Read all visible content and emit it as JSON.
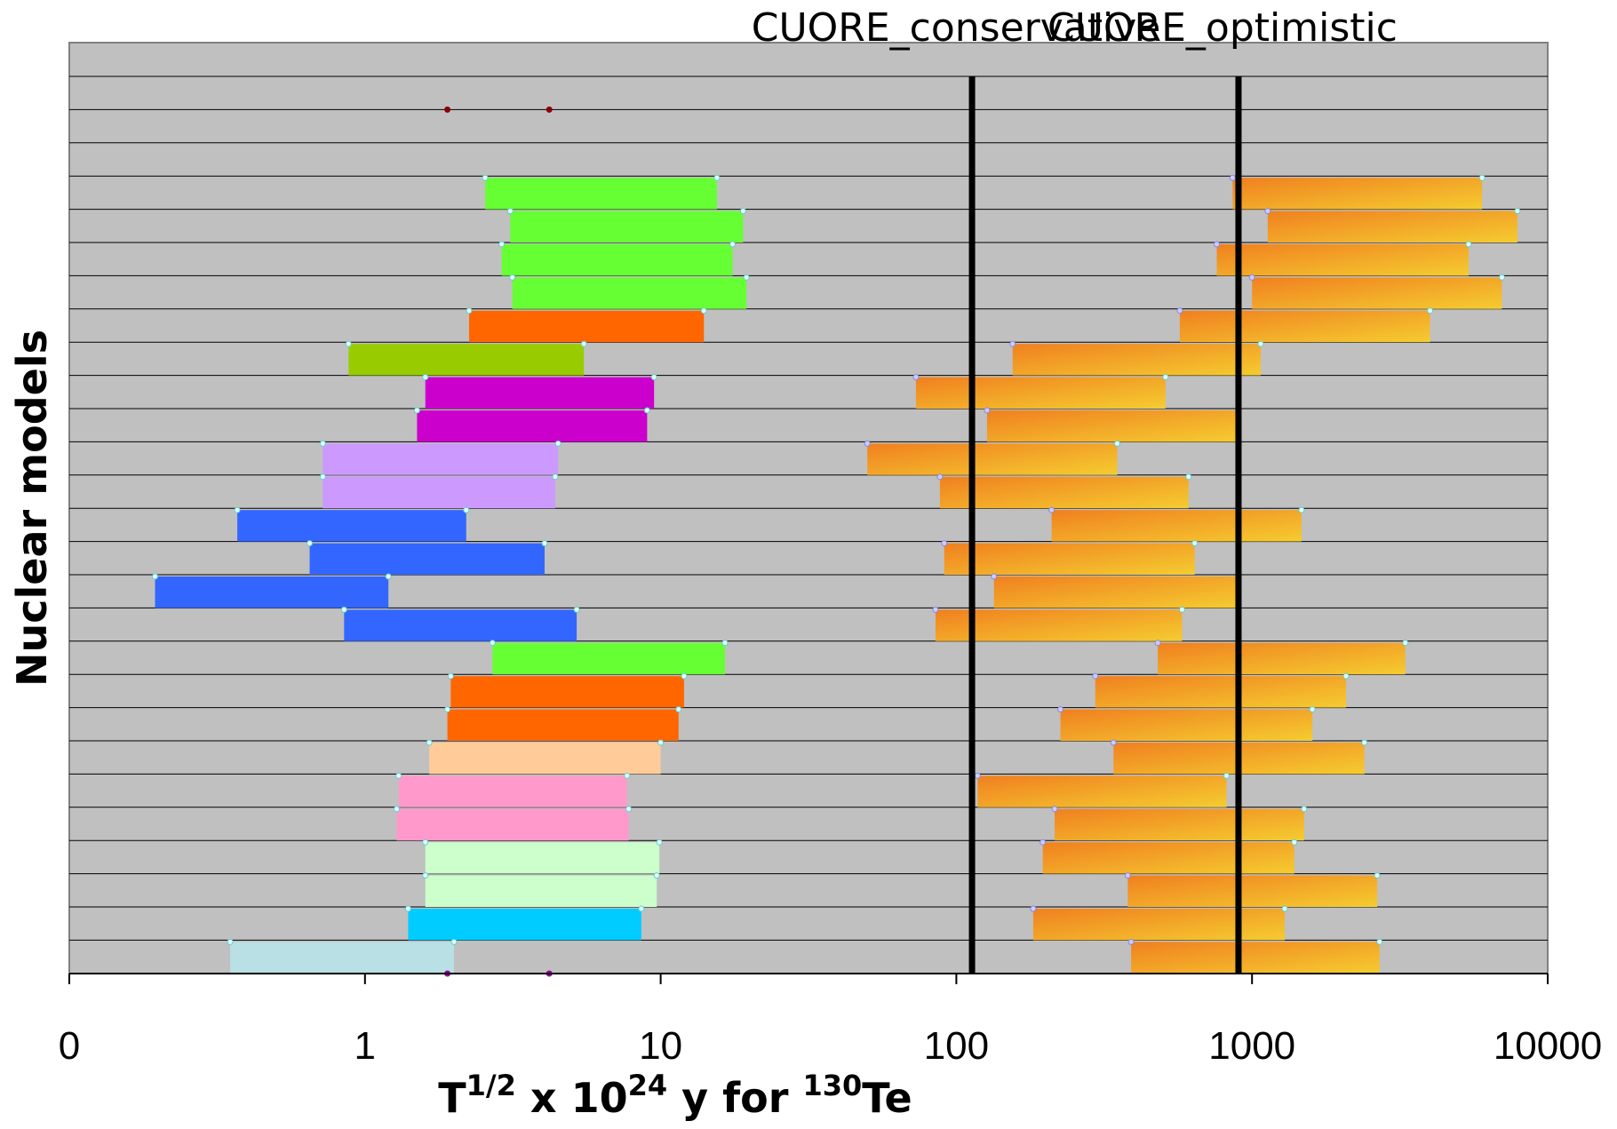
{
  "chart_data": {
    "type": "bar",
    "subtype": "floating-horizontal-ranges",
    "x_scale": "log",
    "xlim": [
      0.1,
      10000
    ],
    "x_ticks": [
      0.1,
      1,
      10,
      100,
      1000,
      10000
    ],
    "x_tick_labels": [
      "0",
      "1",
      "10",
      "100",
      "1000",
      "10000"
    ],
    "xlabel": {
      "base": "T",
      "base_sup": "1/2",
      "mid": " x 10",
      "mid_sup": "24",
      "after": " y for ",
      "iso_sup": "130",
      "element": "Te"
    },
    "ylabel": "Nuclear models",
    "rows": 27,
    "grid": true,
    "background_color": "#c0c0c0",
    "reference_lines": [
      {
        "label": "CUORE_conservative",
        "x": 113
      },
      {
        "label": "CUORE_optimistic",
        "x": 900
      }
    ],
    "top_points": [
      {
        "x": 1.9,
        "color": "#8b0000"
      },
      {
        "x": 4.2,
        "color": "#8b0000"
      }
    ],
    "left_ranges": [
      {
        "row": 3,
        "from": 2.55,
        "to": 15.5,
        "color": "#66ff33"
      },
      {
        "row": 4,
        "from": 3.1,
        "to": 19.0,
        "color": "#66ff33"
      },
      {
        "row": 5,
        "from": 2.9,
        "to": 17.5,
        "color": "#66ff33"
      },
      {
        "row": 6,
        "from": 3.15,
        "to": 19.5,
        "color": "#66ff33"
      },
      {
        "row": 7,
        "from": 2.25,
        "to": 14.0,
        "color": "#ff6600"
      },
      {
        "row": 8,
        "from": 0.88,
        "to": 5.5,
        "color": "#99cc00"
      },
      {
        "row": 9,
        "from": 1.6,
        "to": 9.5,
        "color": "#cc00cc"
      },
      {
        "row": 10,
        "from": 1.5,
        "to": 9.0,
        "color": "#cc00cc"
      },
      {
        "row": 11,
        "from": 0.72,
        "to": 4.5,
        "color": "#cc99ff"
      },
      {
        "row": 12,
        "from": 0.72,
        "to": 4.4,
        "color": "#cc99ff"
      },
      {
        "row": 13,
        "from": 0.37,
        "to": 2.2,
        "color": "#3366ff"
      },
      {
        "row": 14,
        "from": 0.65,
        "to": 4.05,
        "color": "#3366ff"
      },
      {
        "row": 15,
        "from": 0.195,
        "to": 1.2,
        "color": "#3366ff"
      },
      {
        "row": 16,
        "from": 0.85,
        "to": 5.2,
        "color": "#3366ff"
      },
      {
        "row": 17,
        "from": 2.7,
        "to": 16.5,
        "color": "#66ff33"
      },
      {
        "row": 18,
        "from": 1.95,
        "to": 12.0,
        "color": "#ff6600"
      },
      {
        "row": 19,
        "from": 1.9,
        "to": 11.5,
        "color": "#ff6600"
      },
      {
        "row": 20,
        "from": 1.65,
        "to": 10.0,
        "color": "#ffcc99"
      },
      {
        "row": 21,
        "from": 1.3,
        "to": 7.7,
        "color": "#ff99cc"
      },
      {
        "row": 22,
        "from": 1.28,
        "to": 7.8,
        "color": "#ff99cc"
      },
      {
        "row": 23,
        "from": 1.6,
        "to": 9.9,
        "color": "#ccffcc"
      },
      {
        "row": 24,
        "from": 1.6,
        "to": 9.7,
        "color": "#ccffcc"
      },
      {
        "row": 25,
        "from": 1.4,
        "to": 8.6,
        "color": "#00ccff"
      },
      {
        "row": 26,
        "from": 0.35,
        "to": 2.0,
        "color": "#b9e0e4"
      }
    ],
    "right_ranges": [
      {
        "row": 3,
        "from": 860,
        "to": 6000
      },
      {
        "row": 4,
        "from": 1130,
        "to": 7900
      },
      {
        "row": 5,
        "from": 760,
        "to": 5400
      },
      {
        "row": 6,
        "from": 1000,
        "to": 7000
      },
      {
        "row": 7,
        "from": 570,
        "to": 4000
      },
      {
        "row": 8,
        "from": 155,
        "to": 1070
      },
      {
        "row": 9,
        "from": 73,
        "to": 510
      },
      {
        "row": 10,
        "from": 127,
        "to": 900
      },
      {
        "row": 11,
        "from": 50,
        "to": 350
      },
      {
        "row": 12,
        "from": 88,
        "to": 610
      },
      {
        "row": 13,
        "from": 210,
        "to": 1470
      },
      {
        "row": 14,
        "from": 91,
        "to": 640
      },
      {
        "row": 15,
        "from": 134,
        "to": 900
      },
      {
        "row": 16,
        "from": 85,
        "to": 580
      },
      {
        "row": 17,
        "from": 480,
        "to": 3300
      },
      {
        "row": 18,
        "from": 295,
        "to": 2080
      },
      {
        "row": 19,
        "from": 225,
        "to": 1600
      },
      {
        "row": 20,
        "from": 340,
        "to": 2400
      },
      {
        "row": 21,
        "from": 118,
        "to": 820
      },
      {
        "row": 22,
        "from": 215,
        "to": 1500
      },
      {
        "row": 23,
        "from": 196,
        "to": 1390
      },
      {
        "row": 24,
        "from": 380,
        "to": 2650
      },
      {
        "row": 25,
        "from": 182,
        "to": 1290
      },
      {
        "row": 26,
        "from": 390,
        "to": 2700
      }
    ],
    "right_gradient": {
      "from": "#f08020",
      "to": "#f5cc30"
    }
  }
}
